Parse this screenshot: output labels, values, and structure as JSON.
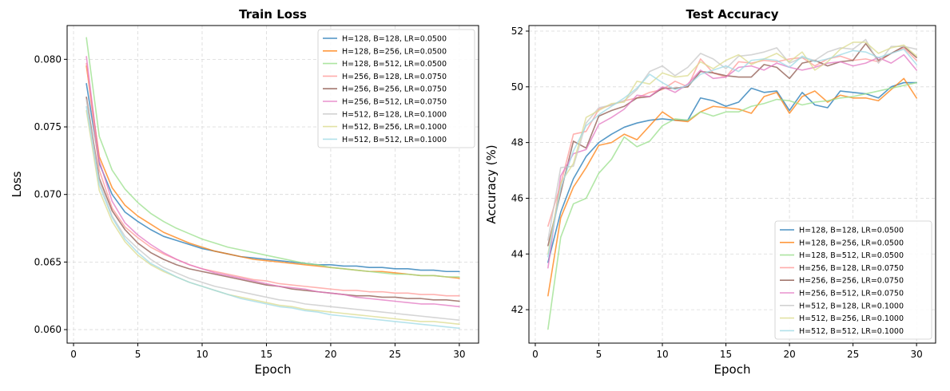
{
  "series_colors": [
    "#1f77b4",
    "#ff7f0e",
    "#98df8a",
    "#ff9896",
    "#8c564b",
    "#e377c2",
    "#c7c7c7",
    "#dbdb8d",
    "#9edae5"
  ],
  "chart_data": [
    {
      "type": "line",
      "title": "Train Loss",
      "xlabel": "Epoch",
      "ylabel": "Loss",
      "xlim": [
        -0.5,
        31.5
      ],
      "ylim": [
        0.059,
        0.0825
      ],
      "xticks": [
        0,
        5,
        10,
        15,
        20,
        25,
        30
      ],
      "yticks": [
        0.06,
        0.065,
        0.07,
        0.075,
        0.08
      ],
      "ytick_labels": [
        "0.060",
        "0.065",
        "0.070",
        "0.075",
        "0.080"
      ],
      "grid": true,
      "legend_position": "top-right",
      "x": [
        1,
        2,
        3,
        4,
        5,
        6,
        7,
        8,
        9,
        10,
        11,
        12,
        13,
        14,
        15,
        16,
        17,
        18,
        19,
        20,
        21,
        22,
        23,
        24,
        25,
        26,
        27,
        28,
        29,
        30
      ],
      "series": [
        {
          "name": "H=128, B=128, LR=0.0500",
          "values": [
            0.0782,
            0.0723,
            0.07,
            0.0687,
            0.068,
            0.0674,
            0.0669,
            0.0666,
            0.0663,
            0.066,
            0.0658,
            0.0656,
            0.0654,
            0.0653,
            0.0652,
            0.0651,
            0.065,
            0.0649,
            0.0648,
            0.0648,
            0.0647,
            0.0647,
            0.0646,
            0.0646,
            0.0645,
            0.0645,
            0.0644,
            0.0644,
            0.0643,
            0.0643
          ]
        },
        {
          "name": "H=128, B=256, LR=0.0500",
          "values": [
            0.0795,
            0.0728,
            0.0705,
            0.0692,
            0.0684,
            0.0678,
            0.0672,
            0.0668,
            0.0664,
            0.0661,
            0.0658,
            0.0656,
            0.0654,
            0.0652,
            0.0651,
            0.065,
            0.0649,
            0.0648,
            0.0647,
            0.0646,
            0.0645,
            0.0644,
            0.0643,
            0.0643,
            0.0642,
            0.0641,
            0.064,
            0.064,
            0.0639,
            0.0638
          ]
        },
        {
          "name": "H=128, B=512, LR=0.0500",
          "values": [
            0.0816,
            0.0743,
            0.0718,
            0.0704,
            0.0694,
            0.0686,
            0.068,
            0.0675,
            0.0671,
            0.0667,
            0.0664,
            0.0661,
            0.0659,
            0.0657,
            0.0655,
            0.0653,
            0.0651,
            0.0649,
            0.0648,
            0.0646,
            0.0645,
            0.0644,
            0.0643,
            0.0642,
            0.0641,
            0.0641,
            0.064,
            0.064,
            0.0639,
            0.0639
          ]
        },
        {
          "name": "H=256, B=128, LR=0.0750",
          "values": [
            0.0797,
            0.0718,
            0.069,
            0.0676,
            0.0668,
            0.0661,
            0.0656,
            0.0652,
            0.0648,
            0.0645,
            0.0643,
            0.0641,
            0.0639,
            0.0637,
            0.0636,
            0.0634,
            0.0633,
            0.0632,
            0.0631,
            0.063,
            0.0629,
            0.0629,
            0.0628,
            0.0628,
            0.0627,
            0.0627,
            0.0626,
            0.0626,
            0.0625,
            0.0625
          ]
        },
        {
          "name": "H=256, B=256, LR=0.0750",
          "values": [
            0.0772,
            0.0712,
            0.0688,
            0.0674,
            0.0664,
            0.0657,
            0.0652,
            0.0648,
            0.0645,
            0.0643,
            0.0641,
            0.0639,
            0.0637,
            0.0635,
            0.0633,
            0.0632,
            0.063,
            0.0629,
            0.0628,
            0.0627,
            0.0626,
            0.0625,
            0.0625,
            0.0624,
            0.0624,
            0.0623,
            0.0623,
            0.0622,
            0.0622,
            0.0621
          ]
        },
        {
          "name": "H=256, B=512, LR=0.0750",
          "values": [
            0.0802,
            0.0725,
            0.0695,
            0.0679,
            0.067,
            0.0663,
            0.0657,
            0.0652,
            0.0648,
            0.0645,
            0.0642,
            0.064,
            0.0638,
            0.0636,
            0.0634,
            0.0632,
            0.0631,
            0.063,
            0.0628,
            0.0627,
            0.0626,
            0.0624,
            0.0623,
            0.0622,
            0.0621,
            0.062,
            0.0619,
            0.0619,
            0.0618,
            0.0617
          ]
        },
        {
          "name": "H=512, B=128, LR=0.1000",
          "values": [
            0.077,
            0.071,
            0.0684,
            0.0669,
            0.066,
            0.0652,
            0.0646,
            0.0642,
            0.0638,
            0.0635,
            0.0632,
            0.063,
            0.0628,
            0.0626,
            0.0624,
            0.0622,
            0.0621,
            0.0619,
            0.0618,
            0.0617,
            0.0616,
            0.0615,
            0.0614,
            0.0613,
            0.0612,
            0.0611,
            0.061,
            0.0609,
            0.0608,
            0.0607
          ]
        },
        {
          "name": "H=512, B=256, LR=0.1000",
          "values": [
            0.0762,
            0.0703,
            0.068,
            0.0665,
            0.0655,
            0.0648,
            0.0643,
            0.0639,
            0.0635,
            0.0632,
            0.0629,
            0.0626,
            0.0624,
            0.0622,
            0.062,
            0.0618,
            0.0617,
            0.0615,
            0.0614,
            0.0613,
            0.0612,
            0.0611,
            0.061,
            0.0609,
            0.0608,
            0.0607,
            0.0606,
            0.0606,
            0.0605,
            0.0604
          ]
        },
        {
          "name": "H=512, B=512, LR=0.1000",
          "values": [
            0.0765,
            0.0707,
            0.0683,
            0.0667,
            0.0657,
            0.0649,
            0.0644,
            0.0639,
            0.0635,
            0.0632,
            0.0629,
            0.0626,
            0.0623,
            0.0621,
            0.0619,
            0.0617,
            0.0616,
            0.0614,
            0.0613,
            0.0611,
            0.061,
            0.0609,
            0.0608,
            0.0607,
            0.0606,
            0.0605,
            0.0604,
            0.0603,
            0.0602,
            0.0601
          ]
        }
      ]
    },
    {
      "type": "line",
      "title": "Test Accuracy",
      "xlabel": "Epoch",
      "ylabel": "Accuracy (%)",
      "xlim": [
        -0.5,
        31.5
      ],
      "ylim": [
        40.8,
        52.2
      ],
      "xticks": [
        0,
        5,
        10,
        15,
        20,
        25,
        30
      ],
      "yticks": [
        42,
        44,
        46,
        48,
        50,
        52
      ],
      "ytick_labels": [
        "42",
        "44",
        "46",
        "48",
        "50",
        "52"
      ],
      "grid": true,
      "legend_position": "bottom-right",
      "x": [
        1,
        2,
        3,
        4,
        5,
        6,
        7,
        8,
        9,
        10,
        11,
        12,
        13,
        14,
        15,
        16,
        17,
        18,
        19,
        20,
        21,
        22,
        23,
        24,
        25,
        26,
        27,
        28,
        29,
        30
      ],
      "series": [
        {
          "name": "H=128, B=128, LR=0.0500",
          "values": [
            43.7,
            45.5,
            46.7,
            47.5,
            48.0,
            48.3,
            48.55,
            48.7,
            48.8,
            48.85,
            48.8,
            48.8,
            49.6,
            49.5,
            49.3,
            49.45,
            49.95,
            49.8,
            49.85,
            49.15,
            49.8,
            49.35,
            49.25,
            49.85,
            49.8,
            49.75,
            49.6,
            50.0,
            50.15,
            50.15
          ]
        },
        {
          "name": "H=128, B=256, LR=0.0500",
          "values": [
            42.5,
            45.3,
            46.4,
            47.1,
            47.9,
            48.0,
            48.3,
            48.1,
            48.6,
            49.1,
            48.8,
            48.75,
            49.1,
            49.3,
            49.25,
            49.2,
            49.05,
            49.65,
            49.8,
            49.05,
            49.65,
            49.85,
            49.45,
            49.7,
            49.6,
            49.6,
            49.5,
            49.9,
            50.3,
            49.6
          ]
        },
        {
          "name": "H=128, B=512, LR=0.0500",
          "values": [
            41.3,
            44.6,
            45.8,
            46.0,
            46.9,
            47.4,
            48.2,
            47.85,
            48.05,
            48.6,
            48.85,
            48.8,
            49.1,
            48.95,
            49.1,
            49.1,
            49.3,
            49.4,
            49.55,
            49.5,
            49.35,
            49.45,
            49.5,
            49.6,
            49.65,
            49.75,
            49.85,
            49.95,
            50.05,
            50.15
          ]
        },
        {
          "name": "H=256, B=128, LR=0.0750",
          "values": [
            45.0,
            46.5,
            48.3,
            48.4,
            49.2,
            49.35,
            49.5,
            49.6,
            49.8,
            49.9,
            50.2,
            50.0,
            51.0,
            50.5,
            50.35,
            50.9,
            50.85,
            50.95,
            50.9,
            51.0,
            51.05,
            50.75,
            51.0,
            51.1,
            50.95,
            51.0,
            50.9,
            51.2,
            51.4,
            50.95
          ]
        },
        {
          "name": "H=256, B=256, LR=0.0750",
          "values": [
            44.3,
            46.2,
            48.05,
            47.8,
            48.95,
            49.15,
            49.3,
            49.6,
            49.65,
            49.95,
            49.95,
            50.0,
            50.55,
            50.5,
            50.4,
            50.35,
            50.35,
            50.8,
            50.7,
            50.3,
            50.85,
            50.95,
            50.75,
            50.9,
            50.95,
            51.55,
            50.95,
            51.2,
            51.45,
            51.05
          ]
        },
        {
          "name": "H=256, B=512, LR=0.0750",
          "values": [
            43.5,
            46.8,
            47.6,
            47.75,
            48.65,
            48.9,
            49.2,
            49.7,
            49.65,
            50.0,
            49.8,
            50.1,
            50.6,
            50.3,
            50.35,
            50.7,
            50.75,
            50.6,
            50.85,
            50.7,
            50.6,
            50.7,
            50.85,
            50.9,
            50.75,
            50.85,
            51.05,
            50.85,
            51.15,
            50.6
          ]
        },
        {
          "name": "H=512, B=128, LR=0.1000",
          "values": [
            44.5,
            47.1,
            47.15,
            48.7,
            49.25,
            49.35,
            49.5,
            49.9,
            50.55,
            50.75,
            50.4,
            50.7,
            51.2,
            51.0,
            50.65,
            51.1,
            51.15,
            51.25,
            51.4,
            50.85,
            51.05,
            50.95,
            51.25,
            51.4,
            51.35,
            51.7,
            50.85,
            51.45,
            51.45,
            51.35
          ]
        },
        {
          "name": "H=512, B=256, LR=0.1000",
          "values": [
            44.0,
            46.55,
            47.25,
            48.9,
            49.15,
            49.4,
            49.45,
            50.2,
            50.1,
            50.5,
            50.35,
            50.4,
            50.9,
            50.65,
            50.95,
            51.15,
            50.8,
            51.0,
            51.2,
            50.9,
            51.25,
            50.6,
            50.9,
            51.35,
            51.6,
            51.6,
            51.2,
            51.4,
            51.5,
            51.1
          ]
        },
        {
          "name": "H=512, B=512, LR=0.1000",
          "values": [
            43.9,
            46.35,
            47.7,
            48.6,
            49.0,
            49.3,
            49.6,
            49.95,
            50.45,
            50.15,
            49.9,
            50.05,
            50.45,
            50.6,
            50.75,
            50.55,
            50.95,
            51.0,
            50.95,
            50.7,
            51.1,
            50.9,
            51.0,
            51.15,
            51.3,
            51.25,
            51.05,
            51.2,
            51.35,
            50.8
          ]
        }
      ]
    }
  ]
}
